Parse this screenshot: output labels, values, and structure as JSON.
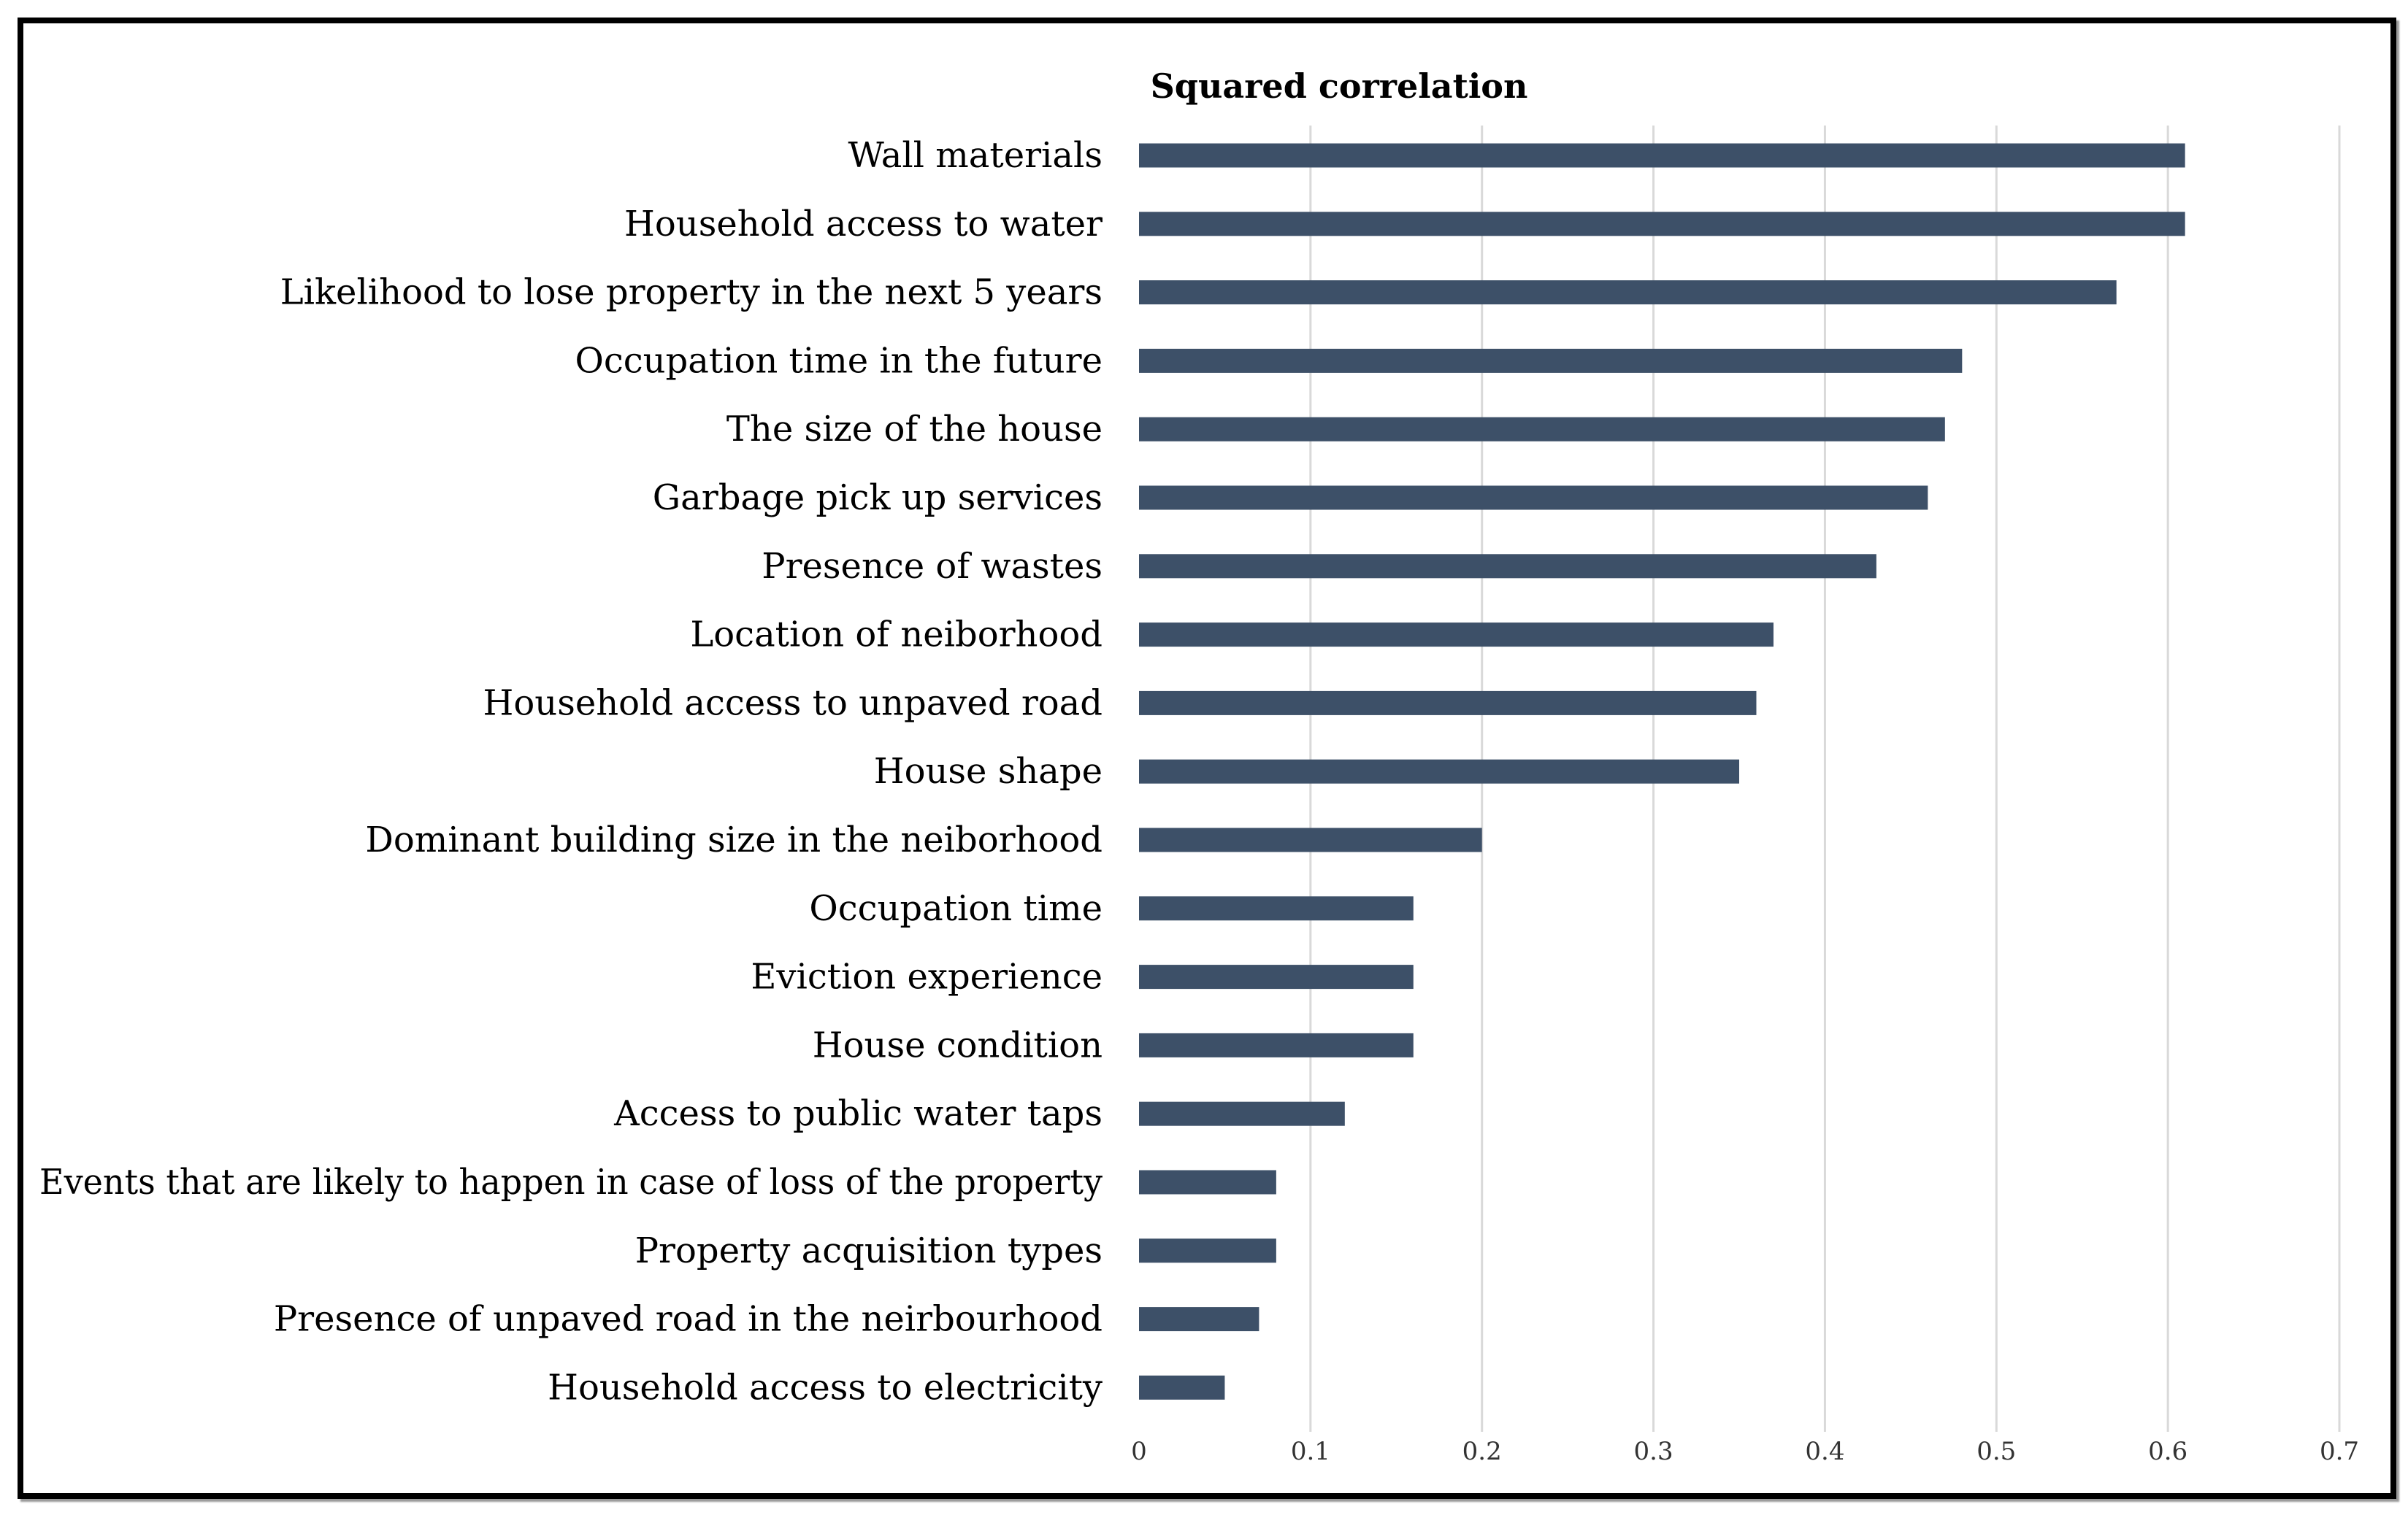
{
  "chart_data": {
    "type": "bar",
    "orientation": "horizontal",
    "title": "Squared correlation",
    "xlabel": "",
    "ylabel": "",
    "xlim": [
      0,
      0.7
    ],
    "xticks": [
      0,
      0.1,
      0.2,
      0.3,
      0.4,
      0.5,
      0.6,
      0.7
    ],
    "grid": true,
    "bar_color": "#3d5068",
    "categories": [
      "Wall materials",
      "Household access to water",
      "Likelihood to lose property in the next 5 years",
      "Occupation time in the future",
      "The size of the house",
      "Garbage pick up services",
      "Presence of wastes",
      "Location of neiborhood",
      "Household access to unpaved road",
      "House shape",
      "Dominant building size in the neiborhood",
      "Occupation time",
      "Eviction experience",
      "House condition",
      "Access to public water taps",
      "Events that are likely to happen in case of loss of the property",
      "Property acquisition types",
      "Presence of unpaved road in the neirbourhood",
      "Household access to electricity"
    ],
    "values": [
      0.61,
      0.61,
      0.57,
      0.48,
      0.47,
      0.46,
      0.43,
      0.37,
      0.36,
      0.35,
      0.2,
      0.16,
      0.16,
      0.16,
      0.12,
      0.08,
      0.08,
      0.07,
      0.05
    ]
  }
}
